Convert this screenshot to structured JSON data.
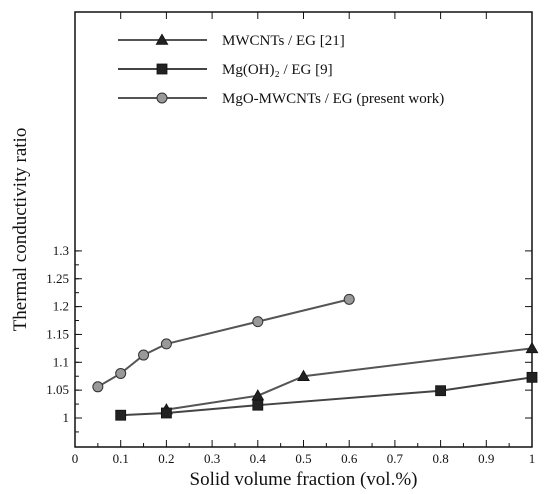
{
  "chart_data": {
    "type": "line",
    "xlabel": "Solid volume fraction (vol.%)",
    "ylabel": "Thermal conductivity ratio",
    "xlim": [
      0,
      1
    ],
    "ylim": [
      0.98,
      1.3
    ],
    "xticks": [
      0,
      0.1,
      0.2,
      0.3,
      0.4,
      0.5,
      0.6,
      0.7,
      0.8,
      0.9,
      1
    ],
    "yticks": [
      1,
      1.05,
      1.1,
      1.15,
      1.2,
      1.25,
      1.3
    ],
    "grid": false,
    "legend_position": "top-left",
    "series": [
      {
        "name": "MWCNTs / EG [21]",
        "marker": "triangle",
        "marker_color": "#222222",
        "line_color": "#555555",
        "x": [
          0.2,
          0.4,
          0.5,
          1.0
        ],
        "y": [
          1.015,
          1.04,
          1.075,
          1.125
        ]
      },
      {
        "name": "Mg(OH)₂ / EG [9]",
        "marker": "square",
        "marker_color": "#222222",
        "line_color": "#444444",
        "x": [
          0.1,
          0.2,
          0.4,
          0.8,
          1.0
        ],
        "y": [
          1.005,
          1.009,
          1.023,
          1.049,
          1.073
        ]
      },
      {
        "name": "MgO-MWCNTs / EG (present work)",
        "marker": "circle",
        "marker_color": "#999999",
        "line_color": "#555555",
        "x": [
          0.05,
          0.1,
          0.15,
          0.2,
          0.4,
          0.6
        ],
        "y": [
          1.056,
          1.08,
          1.113,
          1.133,
          1.173,
          1.213
        ]
      }
    ]
  }
}
